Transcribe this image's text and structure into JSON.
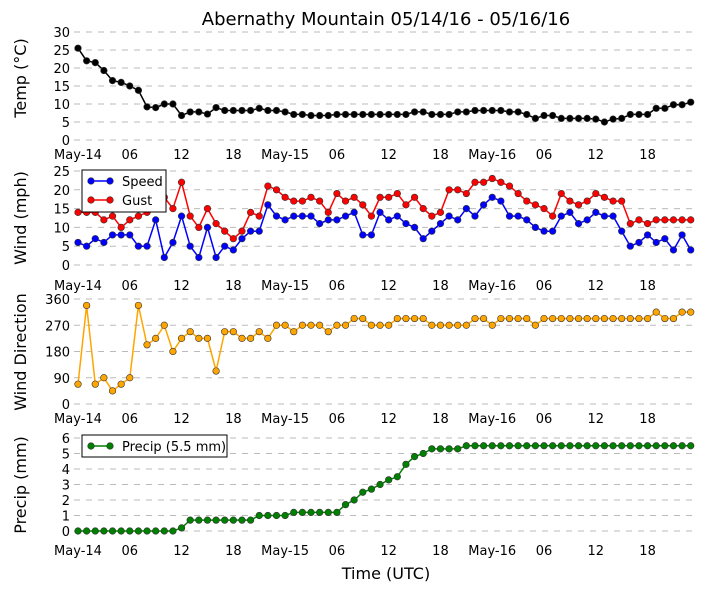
{
  "chart_data": {
    "title": "Abernathy Mountain 05/14/16 - 05/16/16",
    "xlabel": "Time (UTC)",
    "x_unit": "hours since May-14 00:00 UTC",
    "x_ticks": [
      {
        "hour": 0,
        "label": "May-14"
      },
      {
        "hour": 6,
        "label": "06"
      },
      {
        "hour": 12,
        "label": "12"
      },
      {
        "hour": 18,
        "label": "18"
      },
      {
        "hour": 24,
        "label": "May-15"
      },
      {
        "hour": 30,
        "label": "06"
      },
      {
        "hour": 36,
        "label": "12"
      },
      {
        "hour": 42,
        "label": "18"
      },
      {
        "hour": 48,
        "label": "May-16"
      },
      {
        "hour": 54,
        "label": "06"
      },
      {
        "hour": 60,
        "label": "12"
      },
      {
        "hour": 66,
        "label": "18"
      }
    ],
    "panels": [
      {
        "id": "temp",
        "type": "line",
        "ylabel": "Temp (°C)",
        "ylim": [
          0,
          30
        ],
        "yticks": [
          0,
          5,
          10,
          15,
          20,
          25,
          30
        ],
        "legend": null,
        "series": [
          {
            "name": "Temp",
            "color": "#000000",
            "values": [
              25.5,
              22,
              21.5,
              19.3,
              16.5,
              16,
              15,
              13.8,
              9.2,
              9,
              10,
              10,
              6.8,
              7.8,
              7.8,
              7.2,
              9,
              8.2,
              8.2,
              8.2,
              8.2,
              8.8,
              8.2,
              8.2,
              7.8,
              7.1,
              7.1,
              6.8,
              6.8,
              6.8,
              7.1,
              7.1,
              7.1,
              7.1,
              7.1,
              7.1,
              7.1,
              7.1,
              7.1,
              7.8,
              7.8,
              7.1,
              7.1,
              7.1,
              7.8,
              7.8,
              8.2,
              8.2,
              8.2,
              8.2,
              7.8,
              7.8,
              7.1,
              6,
              6.8,
              6.8,
              6,
              6,
              6,
              6,
              5.8,
              5,
              5.8,
              6,
              7.1,
              7.1,
              7.1,
              8.8,
              8.8,
              9.8,
              9.8,
              10.5
            ]
          }
        ]
      },
      {
        "id": "wind",
        "type": "line",
        "ylabel": "Wind (mph)",
        "ylim": [
          0,
          25
        ],
        "yticks": [
          0,
          5,
          10,
          15,
          20,
          25
        ],
        "legend": "top-left",
        "series": [
          {
            "name": "Speed",
            "color": "#0000ff",
            "values": [
              6,
              5,
              7,
              6,
              8,
              8,
              8,
              5,
              5,
              12,
              2,
              6,
              13,
              5,
              2,
              10,
              2,
              5,
              4,
              7,
              9,
              9,
              16,
              13,
              12,
              13,
              13,
              13,
              11,
              12,
              12,
              13,
              14,
              8,
              8,
              14,
              12,
              13,
              11,
              10,
              7,
              9,
              11,
              13,
              12,
              15,
              13,
              16,
              18,
              17,
              13,
              13,
              12,
              10,
              9,
              9,
              13,
              14,
              11,
              12,
              14,
              13,
              13,
              9,
              5,
              6,
              8,
              6,
              7,
              4,
              8,
              4
            ]
          },
          {
            "name": "Gust",
            "color": "#ff0000",
            "values": [
              14,
              14,
              14,
              12,
              13,
              10,
              12,
              13,
              14,
              16,
              18,
              15,
              22,
              13,
              10,
              15,
              11,
              9,
              7,
              9,
              14,
              13,
              21,
              20,
              18,
              17,
              17,
              18,
              17,
              14,
              19,
              17,
              18,
              16,
              13,
              18,
              18,
              19,
              16,
              18,
              15,
              13,
              14,
              20,
              20,
              19,
              22,
              22,
              23,
              22,
              21,
              19,
              17,
              16,
              15,
              13,
              19,
              17,
              16,
              17,
              19,
              18,
              17,
              17,
              11,
              12,
              11,
              12,
              12,
              12,
              12,
              12
            ]
          }
        ]
      },
      {
        "id": "dir",
        "type": "line",
        "ylabel": "Wind Direction",
        "ylim": [
          0,
          360
        ],
        "yticks": [
          0,
          90,
          180,
          270,
          360
        ],
        "legend": null,
        "series": [
          {
            "name": "Direction",
            "color": "#ffa500",
            "values": [
              68,
              338,
              68,
              90,
              45,
              68,
              90,
              338,
              203,
              225,
              270,
              180,
              225,
              248,
              225,
              225,
              113,
              248,
              248,
              225,
              225,
              248,
              225,
              270,
              270,
              248,
              270,
              270,
              270,
              248,
              270,
              270,
              293,
              293,
              270,
              270,
              270,
              293,
              293,
              293,
              293,
              270,
              270,
              270,
              270,
              270,
              293,
              293,
              270,
              293,
              293,
              293,
              293,
              270,
              293,
              293,
              293,
              293,
              293,
              293,
              293,
              293,
              293,
              293,
              293,
              293,
              293,
              315,
              293,
              293,
              315,
              315
            ]
          }
        ]
      },
      {
        "id": "precip",
        "type": "line",
        "ylabel": "Precip (mm)",
        "ylim": [
          0,
          6
        ],
        "yticks": [
          0,
          1,
          2,
          3,
          4,
          5,
          6
        ],
        "legend": "top-left",
        "series": [
          {
            "name": "Precip (5.5 mm)",
            "color": "#008000",
            "values": [
              0,
              0,
              0,
              0,
              0,
              0,
              0,
              0,
              0,
              0,
              0,
              0,
              0.2,
              0.7,
              0.7,
              0.7,
              0.7,
              0.7,
              0.7,
              0.7,
              0.7,
              1.0,
              1.0,
              1.0,
              1.0,
              1.2,
              1.2,
              1.2,
              1.2,
              1.2,
              1.2,
              1.7,
              2.0,
              2.5,
              2.7,
              3.0,
              3.3,
              3.5,
              4.3,
              4.8,
              5.0,
              5.3,
              5.3,
              5.3,
              5.3,
              5.5,
              5.5,
              5.5,
              5.5,
              5.5,
              5.5,
              5.5,
              5.5,
              5.5,
              5.5,
              5.5,
              5.5,
              5.5,
              5.5,
              5.5,
              5.5,
              5.5,
              5.5,
              5.5,
              5.5,
              5.5,
              5.5,
              5.5,
              5.5,
              5.5,
              5.5,
              5.5
            ]
          }
        ]
      }
    ]
  }
}
